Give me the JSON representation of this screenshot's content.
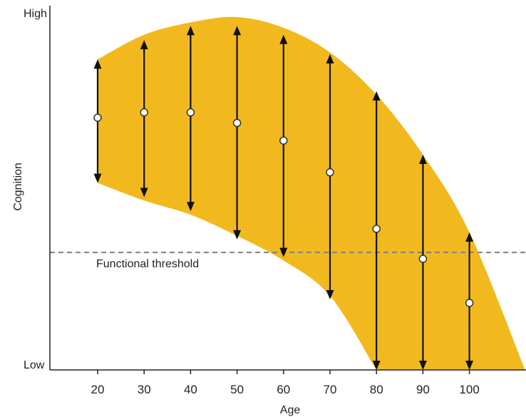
{
  "chart_data": {
    "type": "scatter",
    "title": "",
    "xlabel": "Age",
    "ylabel": "Cognition",
    "y_axis_labels": {
      "high": "High",
      "low": "Low"
    },
    "x_ticks": [
      20,
      30,
      40,
      50,
      60,
      70,
      80,
      90,
      100
    ],
    "xlim": [
      10,
      112
    ],
    "ylim": [
      0,
      100
    ],
    "grid": false,
    "threshold": {
      "label": "Functional threshold",
      "value": 33.3
    },
    "band": {
      "upper": [
        [
          20,
          88
        ],
        [
          30,
          95
        ],
        [
          40,
          98.5
        ],
        [
          50,
          100
        ],
        [
          60,
          97
        ],
        [
          70,
          90
        ],
        [
          80,
          78
        ],
        [
          90,
          61
        ],
        [
          100,
          39
        ],
        [
          112,
          0
        ]
      ],
      "lower": [
        [
          20,
          53
        ],
        [
          30,
          48
        ],
        [
          40,
          44
        ],
        [
          50,
          38
        ],
        [
          60,
          31
        ],
        [
          70,
          21
        ],
        [
          80,
          0
        ]
      ]
    },
    "series": [
      {
        "x": [
          20,
          30,
          40,
          50,
          60,
          70,
          80,
          90,
          100
        ],
        "mean": [
          71.5,
          73,
          73,
          70,
          65,
          56,
          40,
          31.5,
          19
        ],
        "range_high": [
          88,
          93.5,
          97.5,
          97.5,
          95,
          89.5,
          79,
          61,
          39
        ],
        "range_low": [
          53,
          49,
          45,
          37,
          32,
          20,
          0,
          0,
          0
        ]
      }
    ],
    "colors": {
      "band": "#F2B91F",
      "arrow": "#111111",
      "marker_fill": "#ffffff",
      "threshold_line": "#808080",
      "axis": "#222222"
    }
  }
}
